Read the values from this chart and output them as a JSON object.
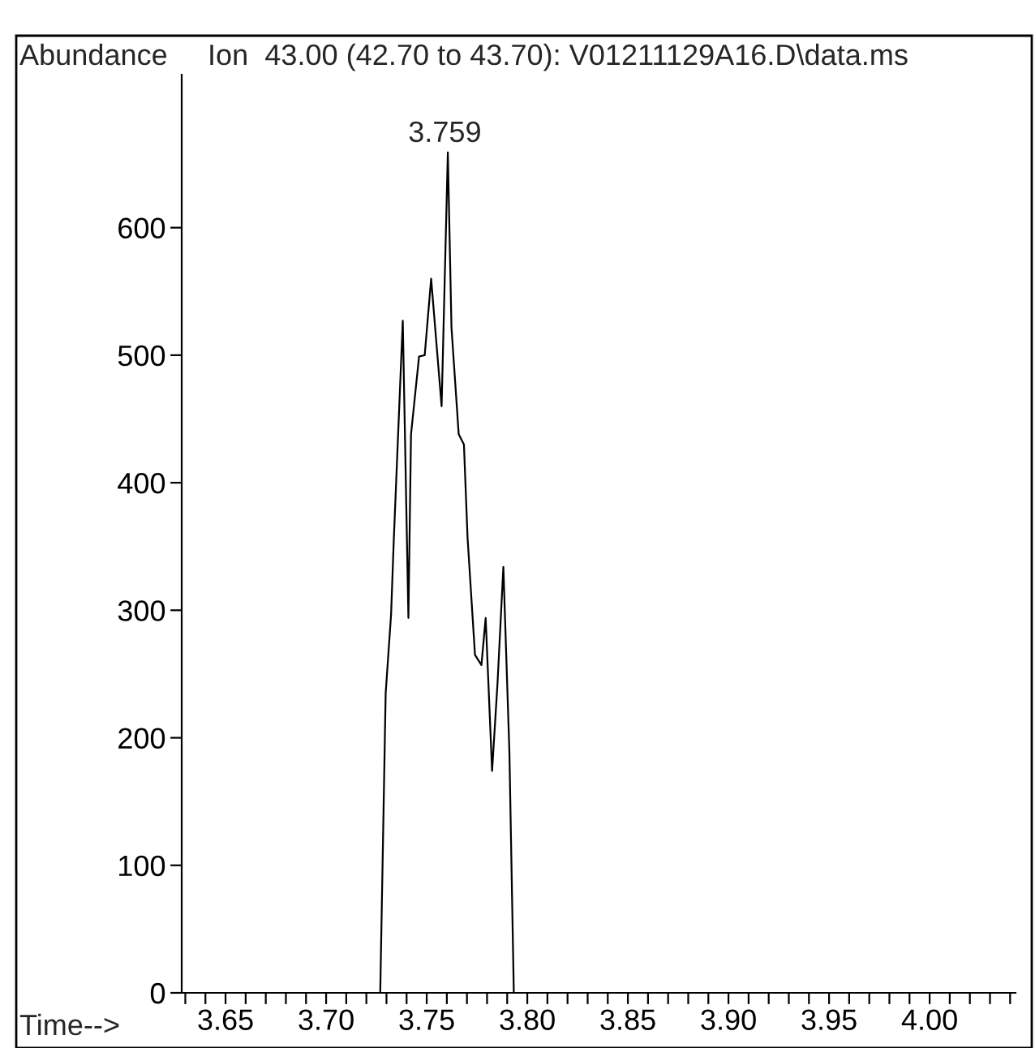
{
  "chart_data": {
    "type": "line",
    "title": "Ion  43.00 (42.70 to 43.70): V01211129A16.D\\data.ms",
    "ylabel": "Abundance",
    "xlabel": "Time-->",
    "x": [
      3.7269,
      3.7296,
      3.7323,
      3.7336,
      3.7381,
      3.7409,
      3.7422,
      3.7462,
      3.749,
      3.7522,
      3.7574,
      3.7605,
      3.7623,
      3.7659,
      3.7685,
      3.7703,
      3.774,
      3.7772,
      3.7793,
      3.7825,
      3.7852,
      3.7881,
      3.7911,
      3.7933
    ],
    "series": [
      {
        "color": "#000000",
        "values": [
          0,
          235,
          297,
          354,
          527,
          294,
          438,
          499,
          500,
          560,
          460,
          659,
          522,
          438,
          430,
          357,
          265,
          257,
          294,
          174,
          243,
          334,
          189,
          0
        ]
      }
    ],
    "annotations": [
      {
        "text": "3.759",
        "x": 3.759,
        "y": 659
      }
    ],
    "xlim": [
      3.6282,
      4.0427
    ],
    "ylim": [
      0,
      720
    ],
    "xticks": [
      {
        "value": 3.63,
        "label": null
      },
      {
        "value": 3.64,
        "label": null
      },
      {
        "value": 3.65,
        "label": "3.65"
      },
      {
        "value": 3.66,
        "label": null
      },
      {
        "value": 3.67,
        "label": null
      },
      {
        "value": 3.68,
        "label": null
      },
      {
        "value": 3.69,
        "label": null
      },
      {
        "value": 3.7,
        "label": "3.70"
      },
      {
        "value": 3.71,
        "label": null
      },
      {
        "value": 3.72,
        "label": null
      },
      {
        "value": 3.73,
        "label": null
      },
      {
        "value": 3.74,
        "label": null
      },
      {
        "value": 3.75,
        "label": "3.75"
      },
      {
        "value": 3.76,
        "label": null
      },
      {
        "value": 3.77,
        "label": null
      },
      {
        "value": 3.78,
        "label": null
      },
      {
        "value": 3.79,
        "label": null
      },
      {
        "value": 3.8,
        "label": "3.80"
      },
      {
        "value": 3.81,
        "label": null
      },
      {
        "value": 3.82,
        "label": null
      },
      {
        "value": 3.83,
        "label": null
      },
      {
        "value": 3.84,
        "label": null
      },
      {
        "value": 3.85,
        "label": "3.85"
      },
      {
        "value": 3.86,
        "label": null
      },
      {
        "value": 3.87,
        "label": null
      },
      {
        "value": 3.88,
        "label": null
      },
      {
        "value": 3.89,
        "label": null
      },
      {
        "value": 3.9,
        "label": "3.90"
      },
      {
        "value": 3.91,
        "label": null
      },
      {
        "value": 3.92,
        "label": null
      },
      {
        "value": 3.93,
        "label": null
      },
      {
        "value": 3.94,
        "label": null
      },
      {
        "value": 3.95,
        "label": "3.95"
      },
      {
        "value": 3.96,
        "label": null
      },
      {
        "value": 3.97,
        "label": null
      },
      {
        "value": 3.98,
        "label": null
      },
      {
        "value": 3.99,
        "label": null
      },
      {
        "value": 4.0,
        "label": "4.00"
      },
      {
        "value": 4.01,
        "label": null
      },
      {
        "value": 4.02,
        "label": null
      },
      {
        "value": 4.03,
        "label": null
      },
      {
        "value": 4.04,
        "label": null
      }
    ],
    "yticks": [
      0,
      100,
      200,
      300,
      400,
      500,
      600
    ],
    "grid": false,
    "legend": false,
    "marker": "none",
    "line_style": "solid"
  }
}
